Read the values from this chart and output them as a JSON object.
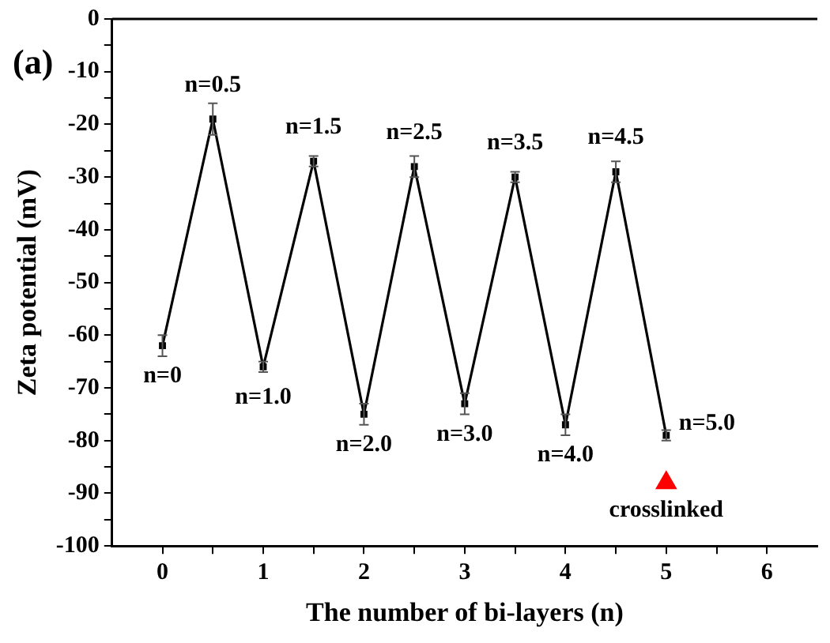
{
  "chart_data": {
    "type": "line",
    "xlabel": "The number of bi-layers (n)",
    "ylabel": "Zeta potential (mV)",
    "x": [
      0,
      0.5,
      1,
      1.5,
      2,
      2.5,
      3,
      3.5,
      4,
      4.5,
      5
    ],
    "series": [
      {
        "color": "#000000",
        "values": [
          -62,
          -19,
          -66,
          -27,
          -75,
          -28,
          -73,
          -30,
          -77,
          -29,
          -79
        ],
        "errors": [
          2,
          3,
          1,
          1,
          2,
          2,
          2,
          1,
          2,
          2,
          1
        ]
      },
      {
        "type": "scatter",
        "color": "#ff0000",
        "x": [
          5
        ],
        "values": [
          -88
        ],
        "marker": "triangle"
      }
    ],
    "marker": "square",
    "xlim": [
      -0.5,
      6.5
    ],
    "xticks": [
      0,
      {
        "value": 0.5,
        "label": null
      },
      1,
      {
        "value": 1.5,
        "label": null
      },
      2,
      {
        "value": 2.5,
        "label": null
      },
      3,
      {
        "value": 3.5,
        "label": null
      },
      4,
      {
        "value": 4.5,
        "label": null
      },
      5,
      {
        "value": 5.5,
        "label": null
      },
      6
    ],
    "ylim": [
      -100,
      0
    ],
    "yticks": [
      -100,
      {
        "value": -95,
        "label": null
      },
      -90,
      {
        "value": -85,
        "label": null
      },
      -80,
      {
        "value": -75,
        "label": null
      },
      -70,
      {
        "value": -65,
        "label": null
      },
      -60,
      {
        "value": -55,
        "label": null
      },
      -50,
      {
        "value": -45,
        "label": null
      },
      -40,
      {
        "value": -35,
        "label": null
      },
      -30,
      {
        "value": -25,
        "label": null
      },
      -20,
      {
        "value": -15,
        "label": null
      },
      -10,
      {
        "value": -5,
        "label": null
      },
      0
    ],
    "grid": false,
    "legend": false,
    "annotations": [
      "(a)",
      {
        "text": "n=0",
        "x": 0,
        "y": -62
      },
      {
        "text": "n=0.5",
        "x": 0.5,
        "y": -19
      },
      {
        "text": "n=1.0",
        "x": 1,
        "y": -66
      },
      {
        "text": "n=1.5",
        "x": 1.5,
        "y": -27
      },
      {
        "text": "n=2.0",
        "x": 2,
        "y": -75
      },
      {
        "text": "n=2.5",
        "x": 2.5,
        "y": -28
      },
      {
        "text": "n=3.0",
        "x": 3,
        "y": -73
      },
      {
        "text": "n=3.5",
        "x": 3.5,
        "y": -30
      },
      {
        "text": "n=4.0",
        "x": 4,
        "y": -77
      },
      {
        "text": "n=4.5",
        "x": 4.5,
        "y": -29
      },
      {
        "text": "n=5.0",
        "x": 5,
        "y": -79
      },
      {
        "text": "crosslinked",
        "x": 5,
        "y": -88
      }
    ]
  }
}
